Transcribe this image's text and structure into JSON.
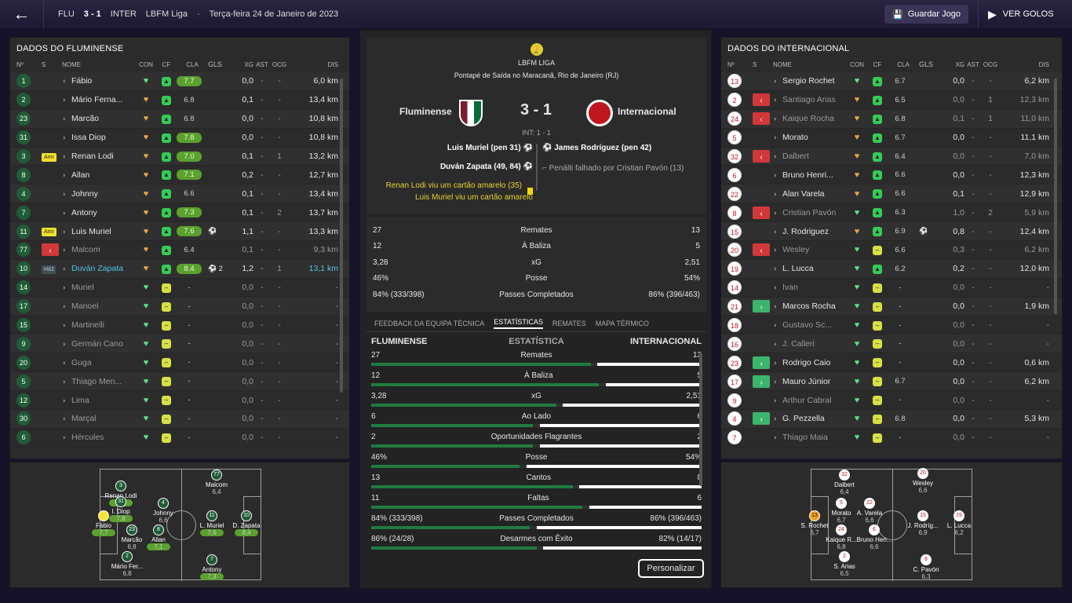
{
  "topbar": {
    "home_abbr": "FLU",
    "score": "3 - 1",
    "away_abbr": "INTER",
    "league": "LBFM Liga",
    "separator": "-",
    "date": "Terça-feira 24 de Janeiro de 2023",
    "save_label": "Guardar Jogo",
    "watch_label": "VER GOLOS"
  },
  "home_panel": {
    "title": "DADOS DO FLUMINENSE"
  },
  "away_panel": {
    "title": "DADOS DO INTERNACIONAL"
  },
  "headers": {
    "n": "Nº",
    "s": "S",
    "name": "NOME",
    "con": "CON",
    "cf": "CF",
    "cla": "CLA",
    "gls": "GLS",
    "xg": "XG",
    "ast": "AST",
    "ocg": "OCG",
    "dis": "DIS"
  },
  "home_players": [
    {
      "num": "1",
      "s": "",
      "name": "Fábio",
      "con": "green",
      "cf": "g",
      "cla": "7.7",
      "gls": "",
      "xg": "0,0",
      "ast": "-",
      "ocg": "-",
      "dis": "6,0 km",
      "state": "on"
    },
    {
      "num": "2",
      "s": "",
      "name": "Mário Ferna...",
      "con": "orange",
      "cf": "g",
      "cla": "6.8",
      "gls": "",
      "xg": "0,1",
      "ast": "-",
      "ocg": "-",
      "dis": "13,4 km",
      "state": "on"
    },
    {
      "num": "23",
      "s": "",
      "name": "Marcão",
      "con": "orange",
      "cf": "g",
      "cla": "6.8",
      "gls": "",
      "xg": "0,0",
      "ast": "-",
      "ocg": "-",
      "dis": "10,8 km",
      "state": "on"
    },
    {
      "num": "31",
      "s": "",
      "name": "Issa Diop",
      "con": "orange",
      "cf": "g",
      "cla": "7.8",
      "gls": "",
      "xg": "0,0",
      "ast": "-",
      "ocg": "-",
      "dis": "10,8 km",
      "state": "on"
    },
    {
      "num": "3",
      "s": "Amr",
      "name": "Renan Lodi",
      "con": "orange",
      "cf": "g",
      "cla": "7.0",
      "gls": "",
      "xg": "0,1",
      "ast": "-",
      "ocg": "1",
      "dis": "13,2 km",
      "state": "on"
    },
    {
      "num": "8",
      "s": "",
      "name": "Allan",
      "con": "orange",
      "cf": "g",
      "cla": "7.1",
      "gls": "",
      "xg": "0,2",
      "ast": "-",
      "ocg": "-",
      "dis": "12,7 km",
      "state": "on"
    },
    {
      "num": "4",
      "s": "",
      "name": "Johnny",
      "con": "orange",
      "cf": "g",
      "cla": "6.6",
      "gls": "",
      "xg": "0,1",
      "ast": "-",
      "ocg": "-",
      "dis": "13,4 km",
      "state": "on"
    },
    {
      "num": "7",
      "s": "",
      "name": "Antony",
      "con": "orange",
      "cf": "g",
      "cla": "7.3",
      "gls": "",
      "xg": "0,1",
      "ast": "-",
      "ocg": "2",
      "dis": "13,7 km",
      "state": "on"
    },
    {
      "num": "11",
      "s": "Amr",
      "name": "Luis Muriel",
      "con": "orange",
      "cf": "g",
      "cla": "7.6",
      "gls": "⚽",
      "xg": "1,1",
      "ast": "-",
      "ocg": "-",
      "dis": "13,3 km",
      "state": "on"
    },
    {
      "num": "77",
      "s": "out",
      "name": "Malcom",
      "con": "orange",
      "cf": "g",
      "cla": "6.4",
      "gls": "",
      "xg": "0,1",
      "ast": "-",
      "ocg": "-",
      "dis": "9,3 km",
      "state": "dim"
    },
    {
      "num": "10",
      "s": "HdJ",
      "name": "Duván Zapata",
      "con": "orange",
      "cf": "g",
      "cla": "8.4",
      "gls": "⚽ 2",
      "xg": "1,2",
      "ast": "-",
      "ocg": "1",
      "dis": "13,1 km",
      "state": "hl"
    },
    {
      "num": "14",
      "s": "",
      "name": "Muriel",
      "con": "green",
      "cf": "y",
      "cla": "-",
      "gls": "",
      "xg": "0,0",
      "ast": "-",
      "ocg": "-",
      "dis": "-",
      "state": "dim"
    },
    {
      "num": "17",
      "s": "",
      "name": "Manoel",
      "con": "green",
      "cf": "y",
      "cla": "-",
      "gls": "",
      "xg": "0,0",
      "ast": "-",
      "ocg": "-",
      "dis": "-",
      "state": "dim"
    },
    {
      "num": "15",
      "s": "",
      "name": "Martinelli",
      "con": "green",
      "cf": "y",
      "cla": "-",
      "gls": "",
      "xg": "0,0",
      "ast": "-",
      "ocg": "-",
      "dis": "-",
      "state": "dim"
    },
    {
      "num": "9",
      "s": "",
      "name": "Germán Cano",
      "con": "green",
      "cf": "y",
      "cla": "-",
      "gls": "",
      "xg": "0,0",
      "ast": "-",
      "ocg": "-",
      "dis": "-",
      "state": "dim"
    },
    {
      "num": "20",
      "s": "",
      "name": "Guga",
      "con": "green",
      "cf": "y",
      "cla": "-",
      "gls": "",
      "xg": "0,0",
      "ast": "-",
      "ocg": "-",
      "dis": "-",
      "state": "dim"
    },
    {
      "num": "5",
      "s": "",
      "name": "Thiago Men...",
      "con": "green",
      "cf": "y",
      "cla": "-",
      "gls": "",
      "xg": "0,0",
      "ast": "-",
      "ocg": "-",
      "dis": "-",
      "state": "dim"
    },
    {
      "num": "12",
      "s": "",
      "name": "Lima",
      "con": "green",
      "cf": "y",
      "cla": "-",
      "gls": "",
      "xg": "0,0",
      "ast": "-",
      "ocg": "-",
      "dis": "-",
      "state": "dim"
    },
    {
      "num": "30",
      "s": "",
      "name": "Marçal",
      "con": "green",
      "cf": "y",
      "cla": "-",
      "gls": "",
      "xg": "0,0",
      "ast": "-",
      "ocg": "-",
      "dis": "-",
      "state": "dim"
    },
    {
      "num": "6",
      "s": "",
      "name": "Hércules",
      "con": "green",
      "cf": "y",
      "cla": "-",
      "gls": "",
      "xg": "0,0",
      "ast": "-",
      "ocg": "-",
      "dis": "-",
      "state": "dim"
    }
  ],
  "away_players": [
    {
      "num": "13",
      "s": "",
      "name": "Sergio Rochet",
      "con": "green",
      "cf": "g",
      "cla": "6.7",
      "gls": "",
      "xg": "0,0",
      "ast": "-",
      "ocg": "-",
      "dis": "6,2 km",
      "state": "on"
    },
    {
      "num": "2",
      "s": "out",
      "name": "Santiago Arias",
      "con": "orange",
      "cf": "g",
      "cla": "6.5",
      "gls": "",
      "xg": "0,0",
      "ast": "-",
      "ocg": "1",
      "dis": "12,3 km",
      "state": "dim"
    },
    {
      "num": "24",
      "s": "out",
      "name": "Kaique Rocha",
      "con": "orange",
      "cf": "g",
      "cla": "6.8",
      "gls": "",
      "xg": "0,1",
      "ast": "-",
      "ocg": "1",
      "dis": "11,0 km",
      "state": "dim"
    },
    {
      "num": "5",
      "s": "",
      "name": "Morato",
      "con": "orange",
      "cf": "g",
      "cla": "6.7",
      "gls": "",
      "xg": "0,0",
      "ast": "-",
      "ocg": "-",
      "dis": "11,1 km",
      "state": "on"
    },
    {
      "num": "32",
      "s": "out",
      "name": "Dalbert",
      "con": "orange",
      "cf": "g",
      "cla": "6.4",
      "gls": "",
      "xg": "0,0",
      "ast": "-",
      "ocg": "-",
      "dis": "7,0 km",
      "state": "dim"
    },
    {
      "num": "6",
      "s": "",
      "name": "Bruno Henri...",
      "con": "orange",
      "cf": "g",
      "cla": "6.6",
      "gls": "",
      "xg": "0,0",
      "ast": "-",
      "ocg": "-",
      "dis": "12,3 km",
      "state": "on"
    },
    {
      "num": "22",
      "s": "",
      "name": "Alan Varela",
      "con": "orange",
      "cf": "g",
      "cla": "6.6",
      "gls": "",
      "xg": "0,1",
      "ast": "-",
      "ocg": "-",
      "dis": "12,9 km",
      "state": "on"
    },
    {
      "num": "8",
      "s": "out",
      "name": "Cristian Pavón",
      "con": "green",
      "cf": "g",
      "cla": "6.3",
      "gls": "",
      "xg": "1,0",
      "ast": "-",
      "ocg": "2",
      "dis": "5,9 km",
      "state": "dim"
    },
    {
      "num": "15",
      "s": "",
      "name": "J. Rodriguez",
      "con": "orange",
      "cf": "g",
      "cla": "6.9",
      "gls": "⚽",
      "xg": "0,8",
      "ast": "-",
      "ocg": "-",
      "dis": "12,4 km",
      "state": "on"
    },
    {
      "num": "20",
      "s": "out",
      "name": "Wesley",
      "con": "green",
      "cf": "y",
      "cla": "6.6",
      "gls": "",
      "xg": "0,3",
      "ast": "-",
      "ocg": "-",
      "dis": "6,2 km",
      "state": "dim"
    },
    {
      "num": "19",
      "s": "",
      "name": "L. Lucca",
      "con": "green",
      "cf": "g",
      "cla": "6.2",
      "gls": "",
      "xg": "0,2",
      "ast": "-",
      "ocg": "-",
      "dis": "12,0 km",
      "state": "on"
    },
    {
      "num": "14",
      "s": "",
      "name": "Ivan",
      "con": "green",
      "cf": "y",
      "cla": "-",
      "gls": "",
      "xg": "0,0",
      "ast": "-",
      "ocg": "-",
      "dis": "-",
      "state": "dim"
    },
    {
      "num": "21",
      "s": "in",
      "name": "Marcos Rocha",
      "con": "green",
      "cf": "y",
      "cla": "-",
      "gls": "",
      "xg": "0,0",
      "ast": "-",
      "ocg": "-",
      "dis": "1,9 km",
      "state": "on"
    },
    {
      "num": "18",
      "s": "",
      "name": "Gustavo Sc...",
      "con": "green",
      "cf": "y",
      "cla": "-",
      "gls": "",
      "xg": "0,0",
      "ast": "-",
      "ocg": "-",
      "dis": "-",
      "state": "dim"
    },
    {
      "num": "16",
      "s": "",
      "name": "J. Calleri",
      "con": "green",
      "cf": "y",
      "cla": "-",
      "gls": "",
      "xg": "0,0",
      "ast": "-",
      "ocg": "-",
      "dis": "-",
      "state": "dim"
    },
    {
      "num": "23",
      "s": "in",
      "name": "Rodrigo Caio",
      "con": "green",
      "cf": "y",
      "cla": "-",
      "gls": "",
      "xg": "0,0",
      "ast": "-",
      "ocg": "-",
      "dis": "0,6 km",
      "state": "on"
    },
    {
      "num": "17",
      "s": "in",
      "name": "Mauro Júnior",
      "con": "green",
      "cf": "y",
      "cla": "6.7",
      "gls": "",
      "xg": "0,0",
      "ast": "-",
      "ocg": "-",
      "dis": "6,2 km",
      "state": "on"
    },
    {
      "num": "9",
      "s": "",
      "name": "Arthur Cabral",
      "con": "green",
      "cf": "y",
      "cla": "-",
      "gls": "",
      "xg": "0,0",
      "ast": "-",
      "ocg": "-",
      "dis": "-",
      "state": "dim"
    },
    {
      "num": "4",
      "s": "in",
      "name": "G. Pezzella",
      "con": "green",
      "cf": "y",
      "cla": "6.8",
      "gls": "",
      "xg": "0,0",
      "ast": "-",
      "ocg": "-",
      "dis": "5,3 km",
      "state": "on"
    },
    {
      "num": "7",
      "s": "",
      "name": "Thiago Maia",
      "con": "green",
      "cf": "y",
      "cla": "-",
      "gls": "",
      "xg": "0,0",
      "ast": "-",
      "ocg": "-",
      "dis": "-",
      "state": "dim"
    }
  ],
  "match": {
    "league": "LBFM LIGA",
    "venue": "Pontapé de Saída no Maracanã, Rio de Janeiro (RJ)",
    "home": "Fluminense",
    "away": "Internacional",
    "score": "3 - 1",
    "ht": "INT: 1 - 1",
    "home_events": [
      "Luis Muriel (pen 31)",
      "Duván Zapata (49, 84)",
      "Renan Lodi viu um cartão amarelo (35)",
      "Luis Muriel viu um cartão amarelo"
    ],
    "away_events": [
      "James Rodríguez (pen 42)",
      "Penálti falhado por Cristian Pavón (13)"
    ],
    "colors": {
      "home": "#7b1c2c",
      "away": "#c0161e"
    }
  },
  "summary": [
    {
      "l": "27",
      "m": "Remates",
      "r": "13"
    },
    {
      "l": "12",
      "m": "À Baliza",
      "r": "5"
    },
    {
      "l": "3,28",
      "m": "xG",
      "r": "2,51"
    },
    {
      "l": "46%",
      "m": "Posse",
      "r": "54%"
    },
    {
      "l": "84% (333/398)",
      "m": "Passes Completados",
      "r": "86% (396/463)"
    }
  ],
  "tabs": [
    "FEEDBACK DA EQUIPA TÉCNICA",
    "ESTATÍSTICAS",
    "REMATES",
    "MAPA TÉRMICO"
  ],
  "stats_header": {
    "home": "FLUMINENSE",
    "mid": "ESTATÍSTICA",
    "away": "INTERNACIONAL"
  },
  "stats": [
    {
      "l": "27",
      "m": "Remates",
      "r": "13",
      "hf": 0.675
    },
    {
      "l": "12",
      "m": "À Baliza",
      "r": "5",
      "hf": 0.7
    },
    {
      "l": "3,28",
      "m": "xG",
      "r": "2,51",
      "hf": 0.57
    },
    {
      "l": "6",
      "m": "Ao Lado",
      "r": "6",
      "hf": 0.5
    },
    {
      "l": "2",
      "m": "Oportunidades Flagrantes",
      "r": "2",
      "hf": 0.5
    },
    {
      "l": "46%",
      "m": "Posse",
      "r": "54%",
      "hf": 0.46
    },
    {
      "l": "13",
      "m": "Cantos",
      "r": "8",
      "hf": 0.62
    },
    {
      "l": "11",
      "m": "Faltas",
      "r": "6",
      "hf": 0.65
    },
    {
      "l": "84% (333/398)",
      "m": "Passes Completados",
      "r": "86% (396/463)",
      "hf": 0.49
    },
    {
      "l": "86% (24/28)",
      "m": "Desarmes com Êxito",
      "r": "82% (14/17)",
      "hf": 0.51
    }
  ],
  "customize_label": "Personalizar",
  "home_pitch": [
    {
      "n": "3",
      "name": "Renan Lodi",
      "r": "7,0",
      "g": true
    },
    {
      "n": "77",
      "name": "Malcom",
      "r": "6,4",
      "g": false
    },
    {
      "n": "31",
      "name": "I. Diop",
      "r": "7,8",
      "g": true
    },
    {
      "n": "4",
      "name": "Johnny",
      "r": "6,6",
      "g": false
    },
    {
      "n": "1",
      "name": "Fábio",
      "r": "7,7",
      "g": true
    },
    {
      "n": "11",
      "name": "L. Muriel",
      "r": "7,6",
      "g": true
    },
    {
      "n": "10",
      "name": "D. Zapata",
      "r": "8,4",
      "g": true
    },
    {
      "n": "23",
      "name": "Marcão",
      "r": "6,8",
      "g": false
    },
    {
      "n": "8",
      "name": "Allan",
      "r": "7,1",
      "g": true
    },
    {
      "n": "2",
      "name": "Mário Fer...",
      "r": "6,8",
      "g": false
    },
    {
      "n": "7",
      "name": "Antony",
      "r": "7,3",
      "g": true
    }
  ],
  "away_pitch": [
    {
      "n": "32",
      "name": "Dalbert",
      "r": "6,4"
    },
    {
      "n": "20",
      "name": "Wesley",
      "r": "6,6"
    },
    {
      "n": "5",
      "name": "Morato",
      "r": "6,7"
    },
    {
      "n": "22",
      "name": "A. Varela",
      "r": "6,6"
    },
    {
      "n": "13",
      "name": "S. Rochet",
      "r": "6,7"
    },
    {
      "n": "15",
      "name": "J. Rodríg...",
      "r": "6,9"
    },
    {
      "n": "19",
      "name": "L. Lucca",
      "r": "6,2"
    },
    {
      "n": "24",
      "name": "Kaique R...",
      "r": "6,8"
    },
    {
      "n": "6",
      "name": "Bruno Hen...",
      "r": "6,6"
    },
    {
      "n": "2",
      "name": "S. Arias",
      "r": "6,5"
    },
    {
      "n": "8",
      "name": "C. Pavón",
      "r": "6,3"
    }
  ]
}
